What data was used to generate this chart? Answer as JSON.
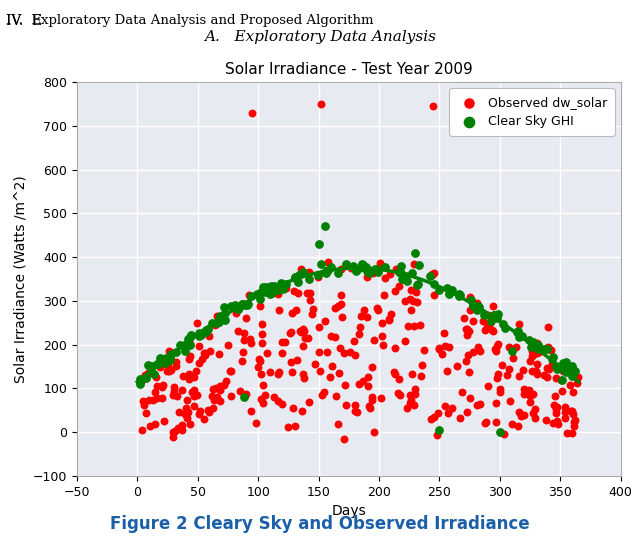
{
  "header_line1": "IV.  Exploratory Data Analysis and Proposed Algorithm",
  "header_line2": "A.   Exploratory Data Analysis",
  "title": "Solar Irradiance - Test Year 2009",
  "xlabel": "Days",
  "ylabel": "Solar Irradiance (Watts /m^2)",
  "xlim": [
    -50,
    400
  ],
  "ylim": [
    -100,
    800
  ],
  "xticks": [
    -50,
    0,
    50,
    100,
    150,
    200,
    250,
    300,
    350,
    400
  ],
  "yticks": [
    -100,
    0,
    100,
    200,
    300,
    400,
    500,
    600,
    700,
    800
  ],
  "background_color": "#e8eaf2",
  "grid_color": "white",
  "observed_color": "#ff0000",
  "clearsky_color": "#008000",
  "legend_observed": "Observed dw_solar",
  "legend_clearsky": "Clear Sky GHI",
  "caption": "Figure 2 Cleary Sky and Observed Irradiance",
  "caption_color": "#1a5fa8",
  "caption_fontsize": 12,
  "title_fontsize": 11,
  "label_fontsize": 10,
  "tick_fontsize": 9
}
